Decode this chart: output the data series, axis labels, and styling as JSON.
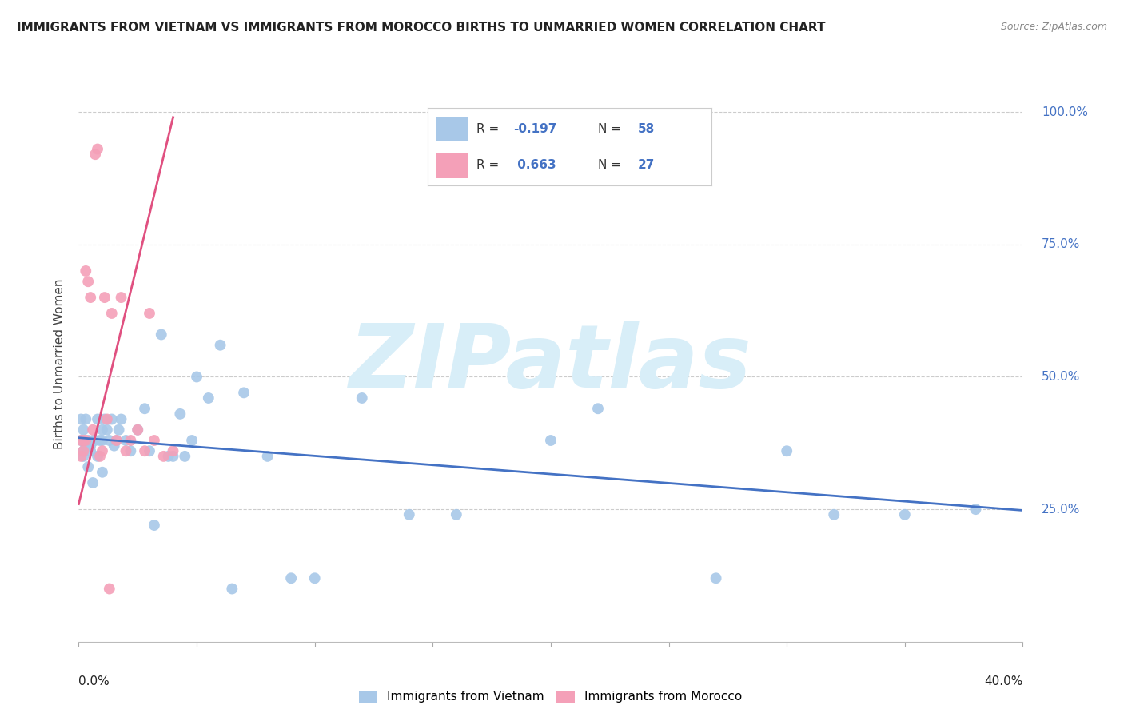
{
  "title": "IMMIGRANTS FROM VIETNAM VS IMMIGRANTS FROM MOROCCO BIRTHS TO UNMARRIED WOMEN CORRELATION CHART",
  "source": "Source: ZipAtlas.com",
  "ylabel": "Births to Unmarried Women",
  "xlim": [
    0.0,
    0.4
  ],
  "ylim": [
    0.0,
    1.05
  ],
  "color_vietnam": "#a8c8e8",
  "color_morocco": "#f4a0b8",
  "trendline_vietnam": "#4472c4",
  "trendline_morocco": "#e05080",
  "background_color": "#ffffff",
  "watermark_text": "ZIPatlas",
  "watermark_color": "#d8eef8",
  "ytick_color": "#4472c4",
  "legend_R_vietnam": "-0.197",
  "legend_N_vietnam": "58",
  "legend_R_morocco": "0.663",
  "legend_N_morocco": "27",
  "viet_trend_x0": 0.0,
  "viet_trend_x1": 0.4,
  "viet_trend_y0": 0.385,
  "viet_trend_y1": 0.248,
  "moroc_trend_x0": 0.0,
  "moroc_trend_x1": 0.04,
  "moroc_trend_y0": 0.26,
  "moroc_trend_y1": 0.99,
  "vietnam_x": [
    0.001,
    0.001,
    0.002,
    0.002,
    0.002,
    0.003,
    0.003,
    0.004,
    0.004,
    0.005,
    0.005,
    0.006,
    0.007,
    0.008,
    0.008,
    0.009,
    0.01,
    0.01,
    0.011,
    0.012,
    0.013,
    0.014,
    0.015,
    0.016,
    0.017,
    0.018,
    0.02,
    0.022,
    0.025,
    0.028,
    0.03,
    0.032,
    0.035,
    0.038,
    0.04,
    0.043,
    0.045,
    0.048,
    0.05,
    0.055,
    0.06,
    0.065,
    0.07,
    0.08,
    0.09,
    0.1,
    0.12,
    0.14,
    0.16,
    0.2,
    0.22,
    0.27,
    0.3,
    0.32,
    0.35,
    0.38,
    0.006,
    0.01
  ],
  "vietnam_y": [
    0.38,
    0.42,
    0.36,
    0.4,
    0.35,
    0.37,
    0.42,
    0.38,
    0.33,
    0.36,
    0.37,
    0.38,
    0.38,
    0.42,
    0.35,
    0.38,
    0.38,
    0.4,
    0.42,
    0.4,
    0.38,
    0.42,
    0.37,
    0.38,
    0.4,
    0.42,
    0.38,
    0.36,
    0.4,
    0.44,
    0.36,
    0.22,
    0.58,
    0.35,
    0.35,
    0.43,
    0.35,
    0.38,
    0.5,
    0.46,
    0.56,
    0.1,
    0.47,
    0.35,
    0.12,
    0.12,
    0.46,
    0.24,
    0.24,
    0.38,
    0.44,
    0.12,
    0.36,
    0.24,
    0.24,
    0.25,
    0.3,
    0.32
  ],
  "morocco_x": [
    0.001,
    0.001,
    0.002,
    0.002,
    0.003,
    0.003,
    0.004,
    0.005,
    0.006,
    0.007,
    0.008,
    0.009,
    0.01,
    0.011,
    0.012,
    0.013,
    0.014,
    0.016,
    0.018,
    0.02,
    0.022,
    0.025,
    0.028,
    0.03,
    0.032,
    0.036,
    0.04
  ],
  "morocco_y": [
    0.38,
    0.35,
    0.36,
    0.38,
    0.7,
    0.38,
    0.68,
    0.65,
    0.4,
    0.92,
    0.93,
    0.35,
    0.36,
    0.65,
    0.42,
    0.1,
    0.62,
    0.38,
    0.65,
    0.36,
    0.38,
    0.4,
    0.36,
    0.62,
    0.38,
    0.35,
    0.36
  ]
}
